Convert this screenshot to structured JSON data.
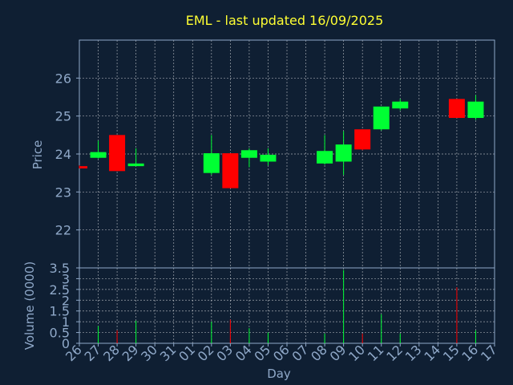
{
  "colors": {
    "background": "#0f1f33",
    "title": "#ffff33",
    "axis_text": "#8fa8c8",
    "grid": "#ffffff",
    "frame": "#8fa8c8",
    "up": "#00ff33",
    "down": "#ff0000"
  },
  "chart_data": [
    {
      "type": "candlestick",
      "title": "EML - last updated 16/09/2025",
      "ylabel": "Price",
      "ylim": [
        21.0,
        27.0
      ],
      "yticks": [
        "22",
        "23",
        "24",
        "25",
        "26"
      ],
      "grid": true,
      "series": [
        {
          "day": "26",
          "open": 23.68,
          "high": 23.7,
          "low": 23.62,
          "close": 23.62
        },
        {
          "day": "27",
          "open": 23.9,
          "high": 24.35,
          "low": 23.88,
          "close": 24.05
        },
        {
          "day": "28",
          "open": 24.5,
          "high": 24.5,
          "low": 23.55,
          "close": 23.55
        },
        {
          "day": "29",
          "open": 23.68,
          "high": 24.15,
          "low": 23.68,
          "close": 23.75
        },
        {
          "day": "02",
          "open": 23.5,
          "high": 24.5,
          "low": 23.45,
          "close": 24.02
        },
        {
          "day": "03",
          "open": 24.02,
          "high": 24.02,
          "low": 23.1,
          "close": 23.1
        },
        {
          "day": "04",
          "open": 23.9,
          "high": 24.15,
          "low": 23.65,
          "close": 24.1
        },
        {
          "day": "05",
          "open": 23.8,
          "high": 24.15,
          "low": 23.7,
          "close": 23.98
        },
        {
          "day": "08",
          "open": 23.75,
          "high": 24.5,
          "low": 23.72,
          "close": 24.08
        },
        {
          "day": "09",
          "open": 23.8,
          "high": 24.6,
          "low": 23.45,
          "close": 24.25
        },
        {
          "day": "10",
          "open": 24.65,
          "high": 24.65,
          "low": 24.1,
          "close": 24.12
        },
        {
          "day": "11",
          "open": 24.65,
          "high": 25.25,
          "low": 24.62,
          "close": 25.25
        },
        {
          "day": "12",
          "open": 25.2,
          "high": 25.45,
          "low": 25.15,
          "close": 25.38
        },
        {
          "day": "15",
          "open": 25.45,
          "high": 25.45,
          "low": 24.95,
          "close": 24.95
        },
        {
          "day": "16",
          "open": 24.95,
          "high": 25.55,
          "low": 24.9,
          "close": 25.38
        }
      ]
    },
    {
      "type": "bar",
      "ylabel": "Volume (0000)",
      "ylim": [
        0,
        3.5
      ],
      "yticks": [
        "0",
        "0.5",
        "1",
        "1.5",
        "2",
        "2.5",
        "3",
        "3.5"
      ],
      "grid": true,
      "values": [
        {
          "day": "27",
          "value": 0.8,
          "direction": "up"
        },
        {
          "day": "28",
          "value": 0.6,
          "direction": "down"
        },
        {
          "day": "29",
          "value": 1.05,
          "direction": "up"
        },
        {
          "day": "02",
          "value": 1.0,
          "direction": "up"
        },
        {
          "day": "03",
          "value": 1.1,
          "direction": "down"
        },
        {
          "day": "04",
          "value": 0.7,
          "direction": "up"
        },
        {
          "day": "05",
          "value": 0.5,
          "direction": "up"
        },
        {
          "day": "08",
          "value": 0.45,
          "direction": "up"
        },
        {
          "day": "09",
          "value": 3.4,
          "direction": "up"
        },
        {
          "day": "10",
          "value": 0.45,
          "direction": "down"
        },
        {
          "day": "11",
          "value": 1.35,
          "direction": "up"
        },
        {
          "day": "12",
          "value": 0.45,
          "direction": "up"
        },
        {
          "day": "15",
          "value": 2.6,
          "direction": "down"
        },
        {
          "day": "16",
          "value": 0.6,
          "direction": "up"
        }
      ]
    }
  ],
  "x_axis": {
    "label": "Day",
    "ticks": [
      "26",
      "27",
      "28",
      "29",
      "30",
      "31",
      "01",
      "02",
      "03",
      "04",
      "05",
      "06",
      "07",
      "08",
      "09",
      "10",
      "11",
      "12",
      "13",
      "14",
      "15",
      "16",
      "17"
    ]
  }
}
